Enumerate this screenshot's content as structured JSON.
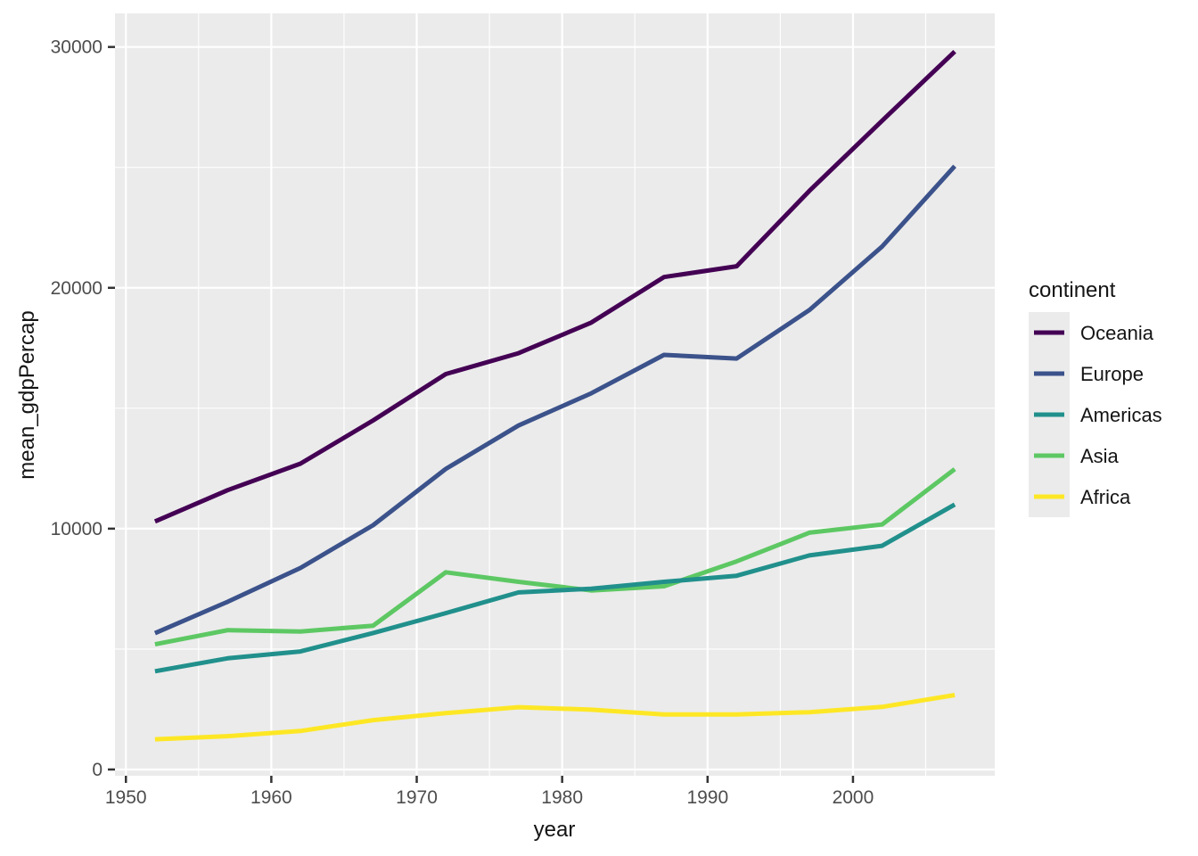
{
  "chart_data": {
    "type": "line",
    "xlabel": "year",
    "ylabel": "mean_gdpPercap",
    "legend_title": "continent",
    "legend_position": "right",
    "grid": true,
    "x": [
      1952,
      1957,
      1962,
      1967,
      1972,
      1977,
      1982,
      1987,
      1992,
      1997,
      2002,
      2007
    ],
    "series": [
      {
        "name": "Oceania",
        "color": "#440154",
        "values": [
          10298.1,
          11598.5,
          12696.5,
          14495.0,
          16417.3,
          17283.9,
          18554.7,
          20448.0,
          20894.1,
          24024.2,
          26938.8,
          29810.2
        ]
      },
      {
        "name": "Europe",
        "color": "#3B528B",
        "values": [
          5661.1,
          6963.0,
          8365.5,
          10143.8,
          12479.6,
          14284.0,
          15617.9,
          17214.3,
          17061.6,
          19076.8,
          21711.7,
          25054.5
        ]
      },
      {
        "name": "Americas",
        "color": "#21908C",
        "values": [
          4079.1,
          4616.0,
          4901.5,
          5668.3,
          6491.3,
          7352.0,
          7506.7,
          7793.4,
          8044.9,
          8889.3,
          9287.7,
          11003.0
        ]
      },
      {
        "name": "Asia",
        "color": "#5DC863",
        "values": [
          5195.5,
          5787.7,
          5729.4,
          5971.2,
          8187.5,
          7791.3,
          7434.1,
          7608.2,
          8639.7,
          9834.1,
          10174.1,
          12473.0
        ]
      },
      {
        "name": "Africa",
        "color": "#FDE725",
        "values": [
          1252.6,
          1385.2,
          1598.1,
          2050.4,
          2339.6,
          2585.9,
          2481.6,
          2282.7,
          2281.8,
          2378.8,
          2599.4,
          3089.0
        ]
      }
    ],
    "xlim": [
      1949.25,
      2009.75
    ],
    "ylim": [
      -260,
      31395
    ],
    "x_ticks": [
      1950,
      1960,
      1970,
      1980,
      1990,
      2000
    ],
    "y_ticks": [
      0,
      10000,
      20000,
      30000
    ],
    "x_minor_ticks": [
      1955,
      1965,
      1975,
      1985,
      1995,
      2005
    ],
    "y_minor_ticks": [
      5000,
      15000,
      25000
    ],
    "colors": {
      "panel_bg": "#EBEBEB",
      "grid": "#FFFFFF",
      "tick_mark": "#333333",
      "tick_label": "#4D4D4D",
      "axis_title": "#141414",
      "legend_key_bg": "#EBEBEB"
    }
  }
}
